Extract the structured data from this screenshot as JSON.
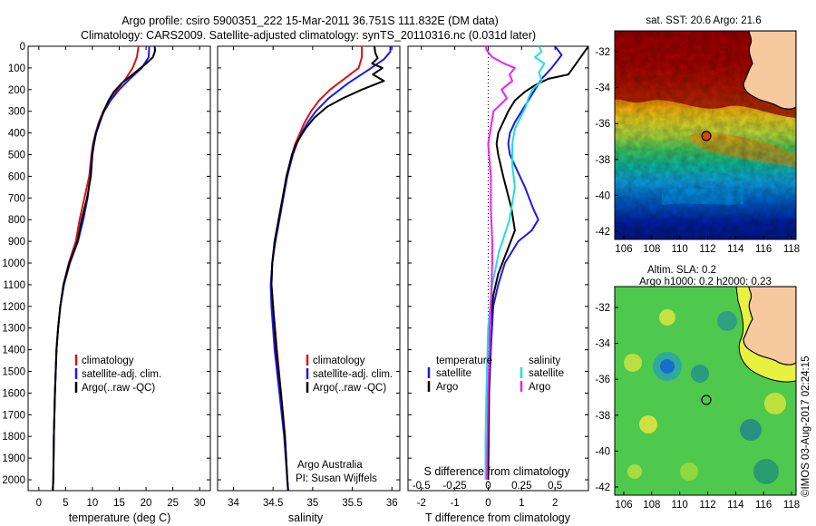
{
  "header": {
    "line1": "Argo profile: csiro 5900351_222 15-Mar-2011 36.751S 111.832E (DM data)",
    "line2": "Climatology: CARS2009. Satellite-adjusted climatology: synTS_20110316.nc (0.031d later)"
  },
  "colors": {
    "climatology": "#dd1111",
    "satellite": "#1a1ae6",
    "argo": "#000000",
    "sat_salinity": "#22dddd",
    "argo_salinity": "#ee22ee"
  },
  "legend_items": [
    {
      "label": "climatology",
      "color": "#dd1111"
    },
    {
      "label": "satellite-adj. clim.",
      "color": "#1a1ae6"
    },
    {
      "label": "Argo(..raw -QC)",
      "color": "#000000"
    }
  ],
  "diff_legend": {
    "col1_title": "temperature",
    "col2_title": "salinity",
    "col1": [
      {
        "label": "satellite",
        "color": "#1a1ae6"
      },
      {
        "label": "Argo",
        "color": "#000000"
      }
    ],
    "col2": [
      {
        "label": "satellite",
        "color": "#22dddd"
      },
      {
        "label": "Argo",
        "color": "#ee22ee"
      }
    ]
  },
  "credit": {
    "line1": "Argo Australia",
    "line2": "PI: Susan Wijffels"
  },
  "maps": {
    "sst_title": "sat. SST: 20.6  Argo: 21.6",
    "sla_title_line1": "Altim. SLA: 0.2",
    "sla_title_line2": "Argo h1000: 0.2  h2000: 0.23",
    "lat_ticks": [
      "-32",
      "-34",
      "-36",
      "-38",
      "-40",
      "-42"
    ],
    "lon_ticks": [
      "106",
      "108",
      "110",
      "112",
      "114",
      "116",
      "118"
    ]
  },
  "timestamp": "©IMOS 03-Aug-2017 02:24:15",
  "chart_data": [
    {
      "type": "line",
      "name": "temperature profile",
      "xlabel": "temperature (deg C)",
      "xlim": [
        -2,
        32
      ],
      "xticks": [
        "0",
        "5",
        "10",
        "15",
        "20",
        "25",
        "30"
      ],
      "ylim": [
        2050,
        0
      ],
      "yticks": [
        "0",
        "100",
        "200",
        "300",
        "400",
        "500",
        "600",
        "700",
        "800",
        "900",
        "1000",
        "1100",
        "1200",
        "1300",
        "1400",
        "1500",
        "1600",
        "1700",
        "1800",
        "1900",
        "2000"
      ],
      "series": [
        {
          "name": "climatology",
          "color": "#dd1111",
          "x": [
            18.6,
            18.3,
            17.5,
            16.2,
            14.6,
            13.2,
            12.0,
            11.2,
            10.6,
            10.1,
            9.8,
            9.4,
            8.5,
            7.6,
            6.9,
            5.6,
            4.6,
            4.0,
            3.6,
            3.3,
            3.0,
            2.8,
            2.7,
            2.6
          ],
          "y": [
            0,
            50,
            100,
            150,
            200,
            250,
            300,
            350,
            400,
            450,
            500,
            600,
            700,
            800,
            900,
            1000,
            1100,
            1200,
            1300,
            1400,
            1600,
            1800,
            2000,
            2050
          ]
        },
        {
          "name": "satellite-adj. clim.",
          "color": "#1a1ae6",
          "x": [
            20.6,
            20.5,
            19.2,
            17.0,
            15.0,
            13.4,
            12.2,
            11.3,
            10.6,
            10.2,
            9.9,
            9.6,
            9.1,
            8.3,
            7.3,
            5.8,
            4.7,
            4.0,
            3.6,
            3.3,
            3.0,
            2.8,
            2.7,
            2.6
          ],
          "y": [
            0,
            50,
            100,
            150,
            200,
            250,
            300,
            350,
            400,
            450,
            500,
            600,
            700,
            800,
            900,
            1000,
            1100,
            1200,
            1300,
            1400,
            1600,
            1800,
            2000,
            2050
          ]
        },
        {
          "name": "Argo",
          "color": "#000000",
          "x": [
            21.6,
            21.7,
            21.3,
            20.0,
            18.5,
            17.0,
            15.5,
            14.0,
            13.0,
            12.1,
            11.4,
            10.7,
            10.3,
            10.0,
            9.7,
            9.0,
            8.0,
            7.2,
            5.7,
            4.6,
            4.0,
            3.6,
            3.3,
            3.0,
            2.8,
            2.7,
            2.6
          ],
          "y": [
            0,
            20,
            50,
            80,
            110,
            140,
            170,
            210,
            250,
            300,
            350,
            400,
            450,
            500,
            600,
            700,
            800,
            900,
            1000,
            1100,
            1200,
            1300,
            1400,
            1600,
            1800,
            2000,
            2050
          ]
        }
      ]
    },
    {
      "type": "line",
      "name": "salinity profile",
      "xlabel": "salinity",
      "xlim": [
        33.8,
        36.1
      ],
      "xticks": [
        "34",
        "34.5",
        "35",
        "35.5",
        "36"
      ],
      "ylim": [
        2050,
        0
      ],
      "series": [
        {
          "name": "climatology",
          "color": "#dd1111",
          "x": [
            35.62,
            35.62,
            35.58,
            35.4,
            35.22,
            35.08,
            34.98,
            34.9,
            34.84,
            34.78,
            34.74,
            34.67,
            34.62,
            34.57,
            34.52,
            34.49,
            34.48,
            34.5,
            34.55,
            34.6,
            34.65,
            34.68,
            34.69
          ],
          "y": [
            0,
            50,
            100,
            150,
            200,
            250,
            300,
            350,
            400,
            450,
            500,
            600,
            700,
            800,
            900,
            1000,
            1100,
            1200,
            1400,
            1600,
            1800,
            2000,
            2050
          ]
        },
        {
          "name": "satellite-adj. clim.",
          "color": "#1a1ae6",
          "x": [
            35.98,
            35.98,
            35.9,
            35.7,
            35.45,
            35.2,
            35.04,
            34.94,
            34.86,
            34.8,
            34.75,
            34.68,
            34.63,
            34.58,
            34.53,
            34.49,
            34.47,
            34.48,
            34.52,
            34.58,
            34.64,
            34.68,
            34.69
          ],
          "y": [
            0,
            25,
            60,
            110,
            170,
            240,
            300,
            350,
            400,
            450,
            500,
            600,
            700,
            800,
            900,
            1000,
            1100,
            1200,
            1400,
            1600,
            1800,
            2000,
            2050
          ]
        },
        {
          "name": "Argo",
          "color": "#000000",
          "x": [
            35.78,
            35.79,
            35.82,
            35.75,
            35.88,
            35.76,
            35.9,
            35.62,
            35.38,
            35.18,
            35.02,
            34.91,
            34.84,
            34.78,
            34.74,
            34.67,
            34.62,
            34.57,
            34.52,
            34.49,
            34.48,
            34.5,
            34.54,
            34.6,
            34.65,
            34.68,
            34.69
          ],
          "y": [
            0,
            30,
            55,
            80,
            100,
            130,
            160,
            200,
            240,
            280,
            330,
            380,
            420,
            460,
            500,
            600,
            700,
            800,
            900,
            1000,
            1100,
            1200,
            1400,
            1600,
            1800,
            2000,
            2050
          ]
        }
      ]
    },
    {
      "type": "line",
      "name": "difference from climatology",
      "xlabel": "T difference from climatology",
      "x2label": "S difference from climatology",
      "xlim": [
        -2.4,
        3.0
      ],
      "xticks": [
        "-2",
        "-1",
        "0",
        "1",
        "2"
      ],
      "x2ticks": [
        "-0.5",
        "-0.25",
        "0",
        "0.25",
        "0.5"
      ],
      "ylim": [
        2050,
        0
      ],
      "series": [
        {
          "name": "satellite temperature",
          "color": "#1a1ae6",
          "x": [
            2.0,
            2.2,
            1.9,
            1.6,
            1.4,
            1.2,
            1.0,
            0.8,
            0.65,
            0.6,
            0.65,
            0.8,
            1.1,
            1.35,
            1.5,
            1.3,
            0.9,
            0.5,
            0.3,
            0.15,
            0.08,
            0.03,
            0.0
          ],
          "y": [
            0,
            40,
            100,
            150,
            200,
            250,
            300,
            350,
            400,
            450,
            500,
            550,
            650,
            750,
            800,
            850,
            900,
            1000,
            1100,
            1200,
            1400,
            1600,
            2000
          ]
        },
        {
          "name": "Argo temperature",
          "color": "#000000",
          "x": [
            3.0,
            2.4,
            1.8,
            1.4,
            1.1,
            0.8,
            0.6,
            0.45,
            0.3,
            0.25,
            0.3,
            0.45,
            0.7,
            0.8,
            0.55,
            0.3,
            0.15,
            0.05,
            0.02,
            0.0
          ],
          "y": [
            0,
            130,
            150,
            180,
            210,
            250,
            300,
            350,
            400,
            450,
            500,
            600,
            750,
            850,
            950,
            1050,
            1150,
            1300,
            1600,
            2000
          ]
        },
        {
          "name": "satellite salinity",
          "color": "#22dddd",
          "x": [
            0.38,
            0.4,
            0.35,
            0.42,
            0.38,
            0.4,
            0.33,
            0.3,
            0.28,
            0.24,
            0.2,
            0.18,
            0.18,
            0.2,
            0.16,
            0.08,
            0.03,
            0.0,
            -0.01,
            -0.02,
            -0.02
          ],
          "y": [
            0,
            25,
            50,
            80,
            120,
            160,
            200,
            240,
            280,
            330,
            380,
            450,
            550,
            650,
            800,
            950,
            1100,
            1300,
            1500,
            1800,
            2000
          ]
        },
        {
          "name": "Argo salinity",
          "color": "#ee22ee",
          "x": [
            -0.02,
            -0.01,
            0.03,
            0.12,
            0.2,
            0.16,
            0.18,
            0.1,
            0.14,
            0.04,
            0.0,
            0.02,
            0.02,
            0.03,
            0.03,
            0.02,
            0.0,
            -0.01
          ],
          "y": [
            0,
            20,
            50,
            80,
            100,
            130,
            160,
            200,
            240,
            300,
            450,
            600,
            750,
            900,
            1000,
            1200,
            1600,
            2000
          ]
        }
      ]
    }
  ]
}
